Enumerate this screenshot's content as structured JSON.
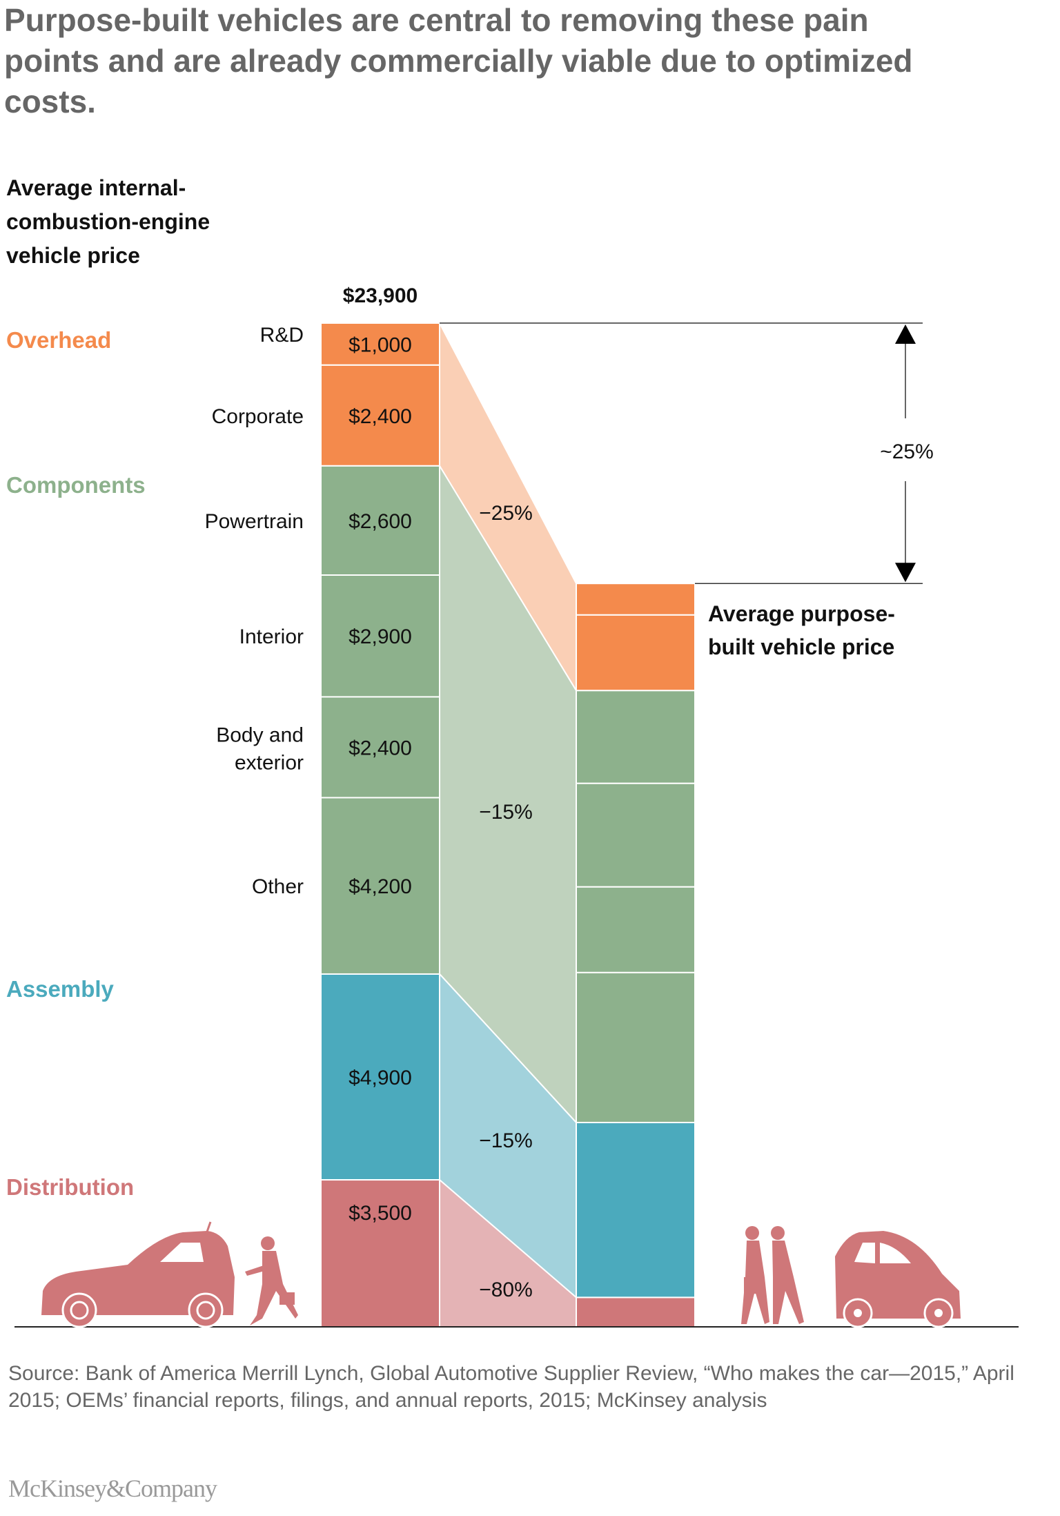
{
  "title": "Purpose-built vehicles are central to removing these pain points and are already commercially viable due to optimized costs.",
  "chart_data": {
    "type": "bar",
    "subtype": "stacked-bar-bridge",
    "left_title": "Average internal-combustion-engine vehicle price",
    "left_total_label": "$23,900",
    "left_total": 23900,
    "right_title": "Average purpose-built vehicle price",
    "total_change_label": "~25%",
    "groups": [
      {
        "name": "Overhead",
        "color": "#F48A4C",
        "band_color": "#FACFB5",
        "change_label": "−25%",
        "items": [
          {
            "label": "R&D",
            "value": 1000,
            "value_label": "$1,000",
            "right_value": 750
          },
          {
            "label": "Corporate",
            "value": 2400,
            "value_label": "$2,400",
            "right_value": 1800
          }
        ]
      },
      {
        "name": "Components",
        "color": "#8DB18C",
        "band_color": "#BFD2BD",
        "change_label": "−15%",
        "items": [
          {
            "label": "Powertrain",
            "value": 2600,
            "value_label": "$2,600",
            "right_value": 2210
          },
          {
            "label": "Interior",
            "value": 2900,
            "value_label": "$2,900",
            "right_value": 2465
          },
          {
            "label": "Body and exterior",
            "label_lines": [
              "Body and",
              "exterior"
            ],
            "value": 2400,
            "value_label": "$2,400",
            "right_value": 2040
          },
          {
            "label": "Other",
            "value": 4200,
            "value_label": "$4,200",
            "right_value": 3570
          }
        ]
      },
      {
        "name": "Assembly",
        "color": "#4BAABD",
        "band_color": "#A2D2DC",
        "change_label": "−15%",
        "items": [
          {
            "label": "",
            "value": 4900,
            "value_label": "$4,900",
            "right_value": 4165
          }
        ]
      },
      {
        "name": "Distribution",
        "color": "#CF7779",
        "band_color": "#E4B3B5",
        "change_label": "−80%",
        "items": [
          {
            "label": "",
            "value": 3500,
            "value_label": "$3,500",
            "right_value": 700
          }
        ]
      }
    ]
  },
  "source": "Source: Bank of America Merrill Lynch, Global Automotive Supplier Review, “Who makes the car—2015,” April 2015; OEMs’ financial reports, filings, and annual reports, 2015; McKinsey analysis",
  "logo": "McKinsey&Company",
  "icons": [
    "hatchback-car-icon",
    "walking-woman-icon",
    "walking-women-icon",
    "small-purpose-built-car-icon"
  ]
}
